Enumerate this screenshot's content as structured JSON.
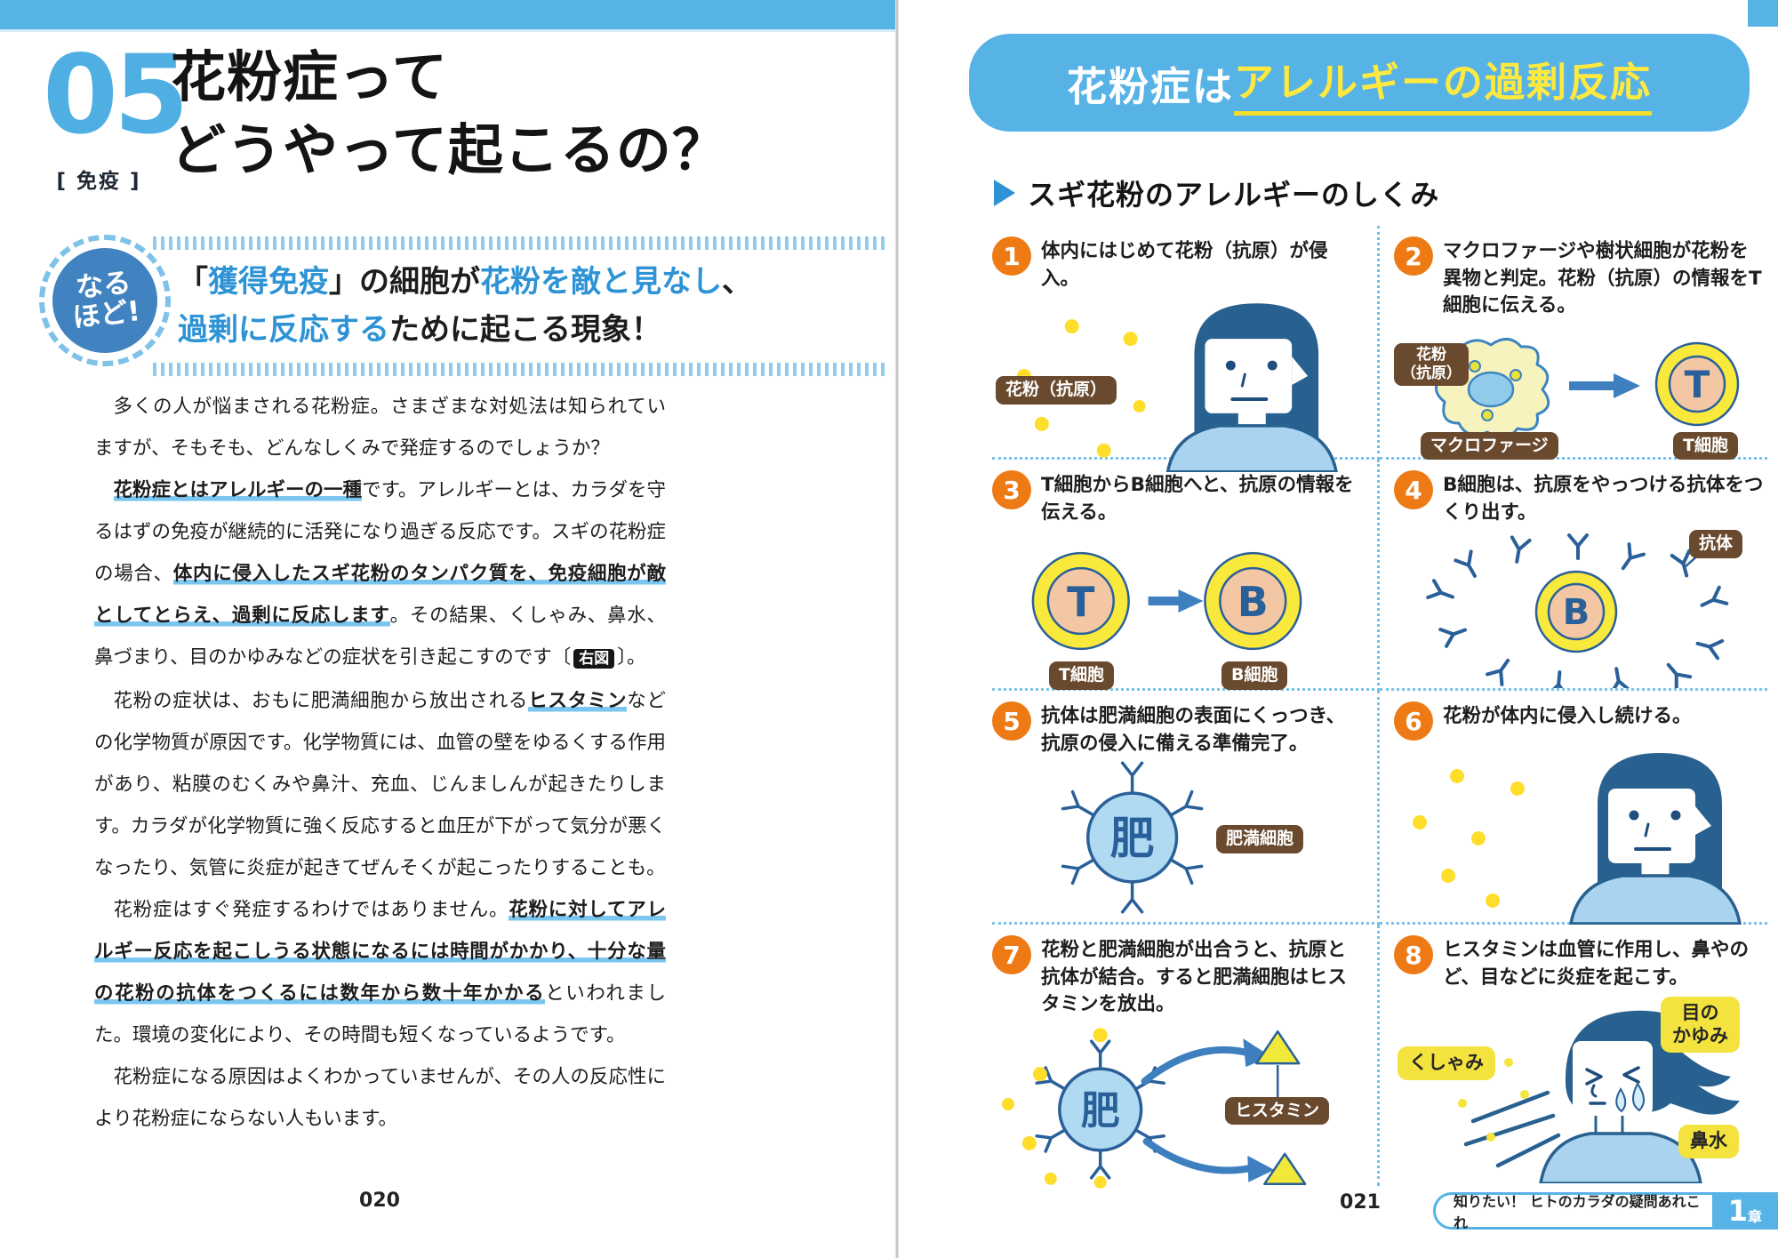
{
  "colors": {
    "light_blue": "#57B3E5",
    "accent_blue": "#2D93D5",
    "marker_blue": "#7AC6F0",
    "badge_blue": "#4183C0",
    "orange": "#ED7A15",
    "brown_label": "#6A4A2E",
    "cell_yellow": "#F9E93C",
    "pollen_yellow": "#FFDD2B",
    "navy_outline": "#2A6099",
    "hair_navy": "#28618F",
    "shirt_blue": "#A9D3EE",
    "yellow_label": "#F4E23F"
  },
  "left_page": {
    "lesson_number": "05",
    "category": "[ 免疫 ]",
    "title_line1": "花粉症って",
    "title_line2": "どうやって起こるの？",
    "badge_line1": "なる",
    "badge_line2": "ほど!",
    "lead_line1": [
      {
        "s": "n",
        "t": "「"
      },
      {
        "s": "b",
        "t": "獲得免疫"
      },
      {
        "s": "n",
        "t": "」の細胞が"
      },
      {
        "s": "b",
        "t": "花粉を敵と見なし"
      },
      {
        "s": "n",
        "t": "、"
      }
    ],
    "lead_line2": [
      {
        "s": "b",
        "t": "過剰に反応する"
      },
      {
        "s": "n",
        "t": "ために起こる現象！"
      }
    ],
    "body": [
      [
        {
          "s": "n",
          "t": "多くの人が悩まされる花粉症。さまざまな対処法は知られていますが、そもそも、どんなしくみで発症するのでしょうか？"
        }
      ],
      [
        {
          "s": "u",
          "t": "花粉症とはアレルギーの一種"
        },
        {
          "s": "n",
          "t": "です。アレルギーとは、カラダを守るはずの免疫が継続的に活発になり過ぎる反応です。スギの花粉症の場合、"
        },
        {
          "s": "u",
          "t": "体内に侵入したスギ花粉のタンパク質を、免疫細胞が敵としてとらえ、過剰に反応します"
        },
        {
          "s": "n",
          "t": "。その結果、くしゃみ、鼻水、鼻づまり、目のかゆみなどの症状を引き起こすのです〔"
        },
        {
          "s": "box",
          "t": "右図"
        },
        {
          "s": "n",
          "t": "〕。"
        }
      ],
      [
        {
          "s": "n",
          "t": "花粉の症状は、おもに肥満細胞から放出される"
        },
        {
          "s": "u",
          "t": "ヒスタミン"
        },
        {
          "s": "n",
          "t": "などの化学物質が原因です。化学物質には、血管の壁をゆるくする作用があり、粘膜のむくみや鼻汁、充血、じんましんが起きたりします。カラダが化学物質に強く反応すると血圧が下がって気分が悪くなったり、気管に炎症が起きてぜんそくが起こったりすることも。"
        }
      ],
      [
        {
          "s": "n",
          "t": "花粉症はすぐ発症するわけではありません。"
        },
        {
          "s": "u",
          "t": "花粉に対してアレルギー反応を起こしうる状態になるには時間がかかり、十分な量の花粉の抗体をつくるには数年から数十年かかる"
        },
        {
          "s": "n",
          "t": "といわれました。環境の変化により、その時間も短くなっているようです。"
        }
      ],
      [
        {
          "s": "n",
          "t": "花粉症になる原因はよくわかっていませんが、その人の反応性により花粉症にならない人もいます。"
        }
      ]
    ],
    "page_number": "020"
  },
  "right_page": {
    "banner_white": "花粉症は",
    "banner_yellow": "アレルギーの過剰反応",
    "section_title": "スギ花粉のアレルギーのしくみ",
    "cells": {
      "t": "T",
      "b": "B",
      "mast": "肥"
    },
    "steps": [
      {
        "num": "1",
        "caption": "体内にはじめて花粉（抗原）が侵入。",
        "labels": {
          "pollen": "花粉（抗原）"
        }
      },
      {
        "num": "2",
        "caption": "マクロファージや樹状細胞が花粉を異物と判定。花粉（抗原）の情報をT細胞に伝える。",
        "labels": {
          "pollen": "花粉\n（抗原）",
          "macrophage": "マクロファージ",
          "t_cell": "T細胞"
        }
      },
      {
        "num": "3",
        "caption": "T細胞からB細胞へと、抗原の情報を伝える。",
        "labels": {
          "t_cell": "T細胞",
          "b_cell": "B細胞"
        }
      },
      {
        "num": "4",
        "caption": "B細胞は、抗原をやっつける抗体をつくり出す。",
        "labels": {
          "antibody": "抗体"
        }
      },
      {
        "num": "5",
        "caption": "抗体は肥満細胞の表面にくっつき、抗原の侵入に備える準備完了。",
        "labels": {
          "mast": "肥満細胞"
        }
      },
      {
        "num": "6",
        "caption": "花粉が体内に侵入し続ける。",
        "labels": {}
      },
      {
        "num": "7",
        "caption": "花粉と肥満細胞が出合うと、抗原と抗体が結合。すると肥満細胞はヒスタミンを放出。",
        "labels": {
          "histamine": "ヒスタミン"
        }
      },
      {
        "num": "8",
        "caption": "ヒスタミンは血管に作用し、鼻やのど、目などに炎症を起こす。",
        "labels": {
          "sneeze": "くしゃみ",
          "itchy_eyes": "目の\nかゆみ",
          "runny_nose": "鼻水"
        }
      }
    ],
    "page_number": "021",
    "footer_text": "知りたい！ ヒトのカラダの疑問あれこれ",
    "chapter_number": "1",
    "chapter_suffix": "章"
  }
}
